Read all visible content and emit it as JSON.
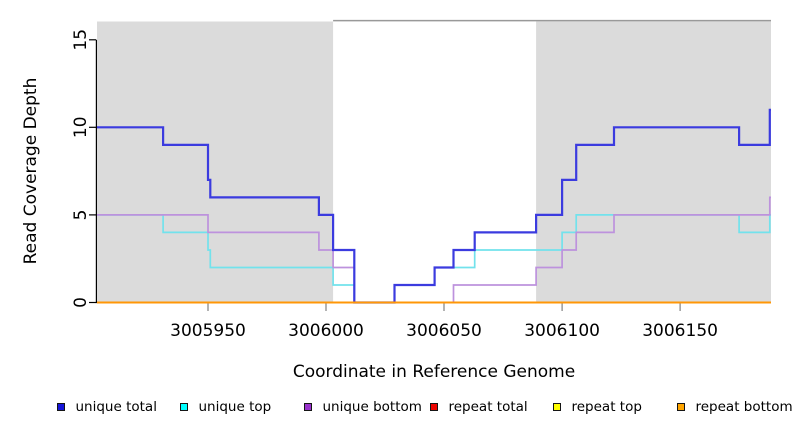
{
  "chart_data": {
    "type": "line",
    "subtype": "step-coverage",
    "title": "",
    "xlabel": "Coordinate in Reference Genome",
    "ylabel": "Read Coverage Depth",
    "xlim": [
      3005903,
      3006188.5
    ],
    "ylim": [
      0,
      16.3
    ],
    "x_ticks": [
      3005950,
      3006000,
      3006050,
      3006100,
      3006150
    ],
    "x_tick_labels": [
      "3005950",
      "3006000",
      "3006050",
      "3006100",
      "3006150"
    ],
    "y_ticks": [
      0,
      5,
      10,
      15
    ],
    "y_tick_labels": [
      "0",
      "5",
      "10",
      "15"
    ],
    "grid": false,
    "legend_position": "bottom",
    "axis_color": "#000000",
    "x_tick_color": "#808080",
    "region_fill": "#DBDBDB",
    "shaded_regions": [
      {
        "x0": 3005903,
        "x1": 3006003,
        "side": "left"
      },
      {
        "x0": 3006089,
        "x1": 3006188.5,
        "side": "right"
      }
    ],
    "region_top_border": {
      "x0": 3006003,
      "x1": 3006188.5,
      "color": "#999999"
    },
    "draw_order": [
      "unique top",
      "unique bottom",
      "unique total",
      "repeat total",
      "repeat top",
      "repeat bottom"
    ],
    "series": [
      {
        "name": "unique total",
        "line_color": "#3B3BDF",
        "legend_color": "#1616D9",
        "line_width": 2.2,
        "steps": [
          [
            3005903,
            10
          ],
          [
            3005931,
            9
          ],
          [
            3005950,
            7
          ],
          [
            3005951,
            6
          ],
          [
            3005997,
            5
          ],
          [
            3006003,
            3
          ],
          [
            3006012,
            0
          ],
          [
            3006029,
            1
          ],
          [
            3006046,
            2
          ],
          [
            3006054,
            3
          ],
          [
            3006063,
            4
          ],
          [
            3006089,
            5
          ],
          [
            3006100,
            7
          ],
          [
            3006106,
            9
          ],
          [
            3006122,
            10
          ],
          [
            3006175,
            9
          ],
          [
            3006188,
            11
          ]
        ],
        "end_x": 3006188.5
      },
      {
        "name": "unique top",
        "line_color": "#72E2EC",
        "legend_color": "#00FFFF",
        "line_width": 1.7,
        "steps": [
          [
            3005903,
            5
          ],
          [
            3005931,
            4
          ],
          [
            3005950,
            3
          ],
          [
            3005951,
            2
          ],
          [
            3006003,
            1
          ],
          [
            3006012,
            0
          ],
          [
            3006029,
            1
          ],
          [
            3006046,
            2
          ],
          [
            3006063,
            3
          ],
          [
            3006100,
            4
          ],
          [
            3006106,
            5
          ],
          [
            3006175,
            4
          ],
          [
            3006188,
            5
          ]
        ],
        "end_x": 3006188.5
      },
      {
        "name": "unique bottom",
        "line_color": "#BD92DD",
        "legend_color": "#9932CC",
        "line_width": 1.7,
        "steps": [
          [
            3005903,
            5
          ],
          [
            3005950,
            4
          ],
          [
            3005997,
            3
          ],
          [
            3006003,
            2
          ],
          [
            3006012,
            0
          ],
          [
            3006054,
            1
          ],
          [
            3006089,
            2
          ],
          [
            3006100,
            3
          ],
          [
            3006106,
            4
          ],
          [
            3006122,
            5
          ],
          [
            3006188,
            6
          ]
        ],
        "end_x": 3006188.5
      },
      {
        "name": "repeat total",
        "line_color": "#CC2222",
        "legend_color": "#EB0500",
        "line_width": 1.4,
        "steps": [
          [
            3005903,
            0
          ]
        ],
        "end_x": 3006188.5
      },
      {
        "name": "repeat top",
        "line_color": "#F5E100",
        "legend_color": "#FFFF00",
        "line_width": 1.4,
        "steps": [
          [
            3005903,
            0
          ]
        ],
        "end_x": 3006188.5
      },
      {
        "name": "repeat bottom",
        "line_color": "#FF9707",
        "legend_color": "#FFA500",
        "line_width": 2,
        "steps": [
          [
            3005903,
            0
          ]
        ],
        "end_x": 3006188.5
      }
    ]
  }
}
